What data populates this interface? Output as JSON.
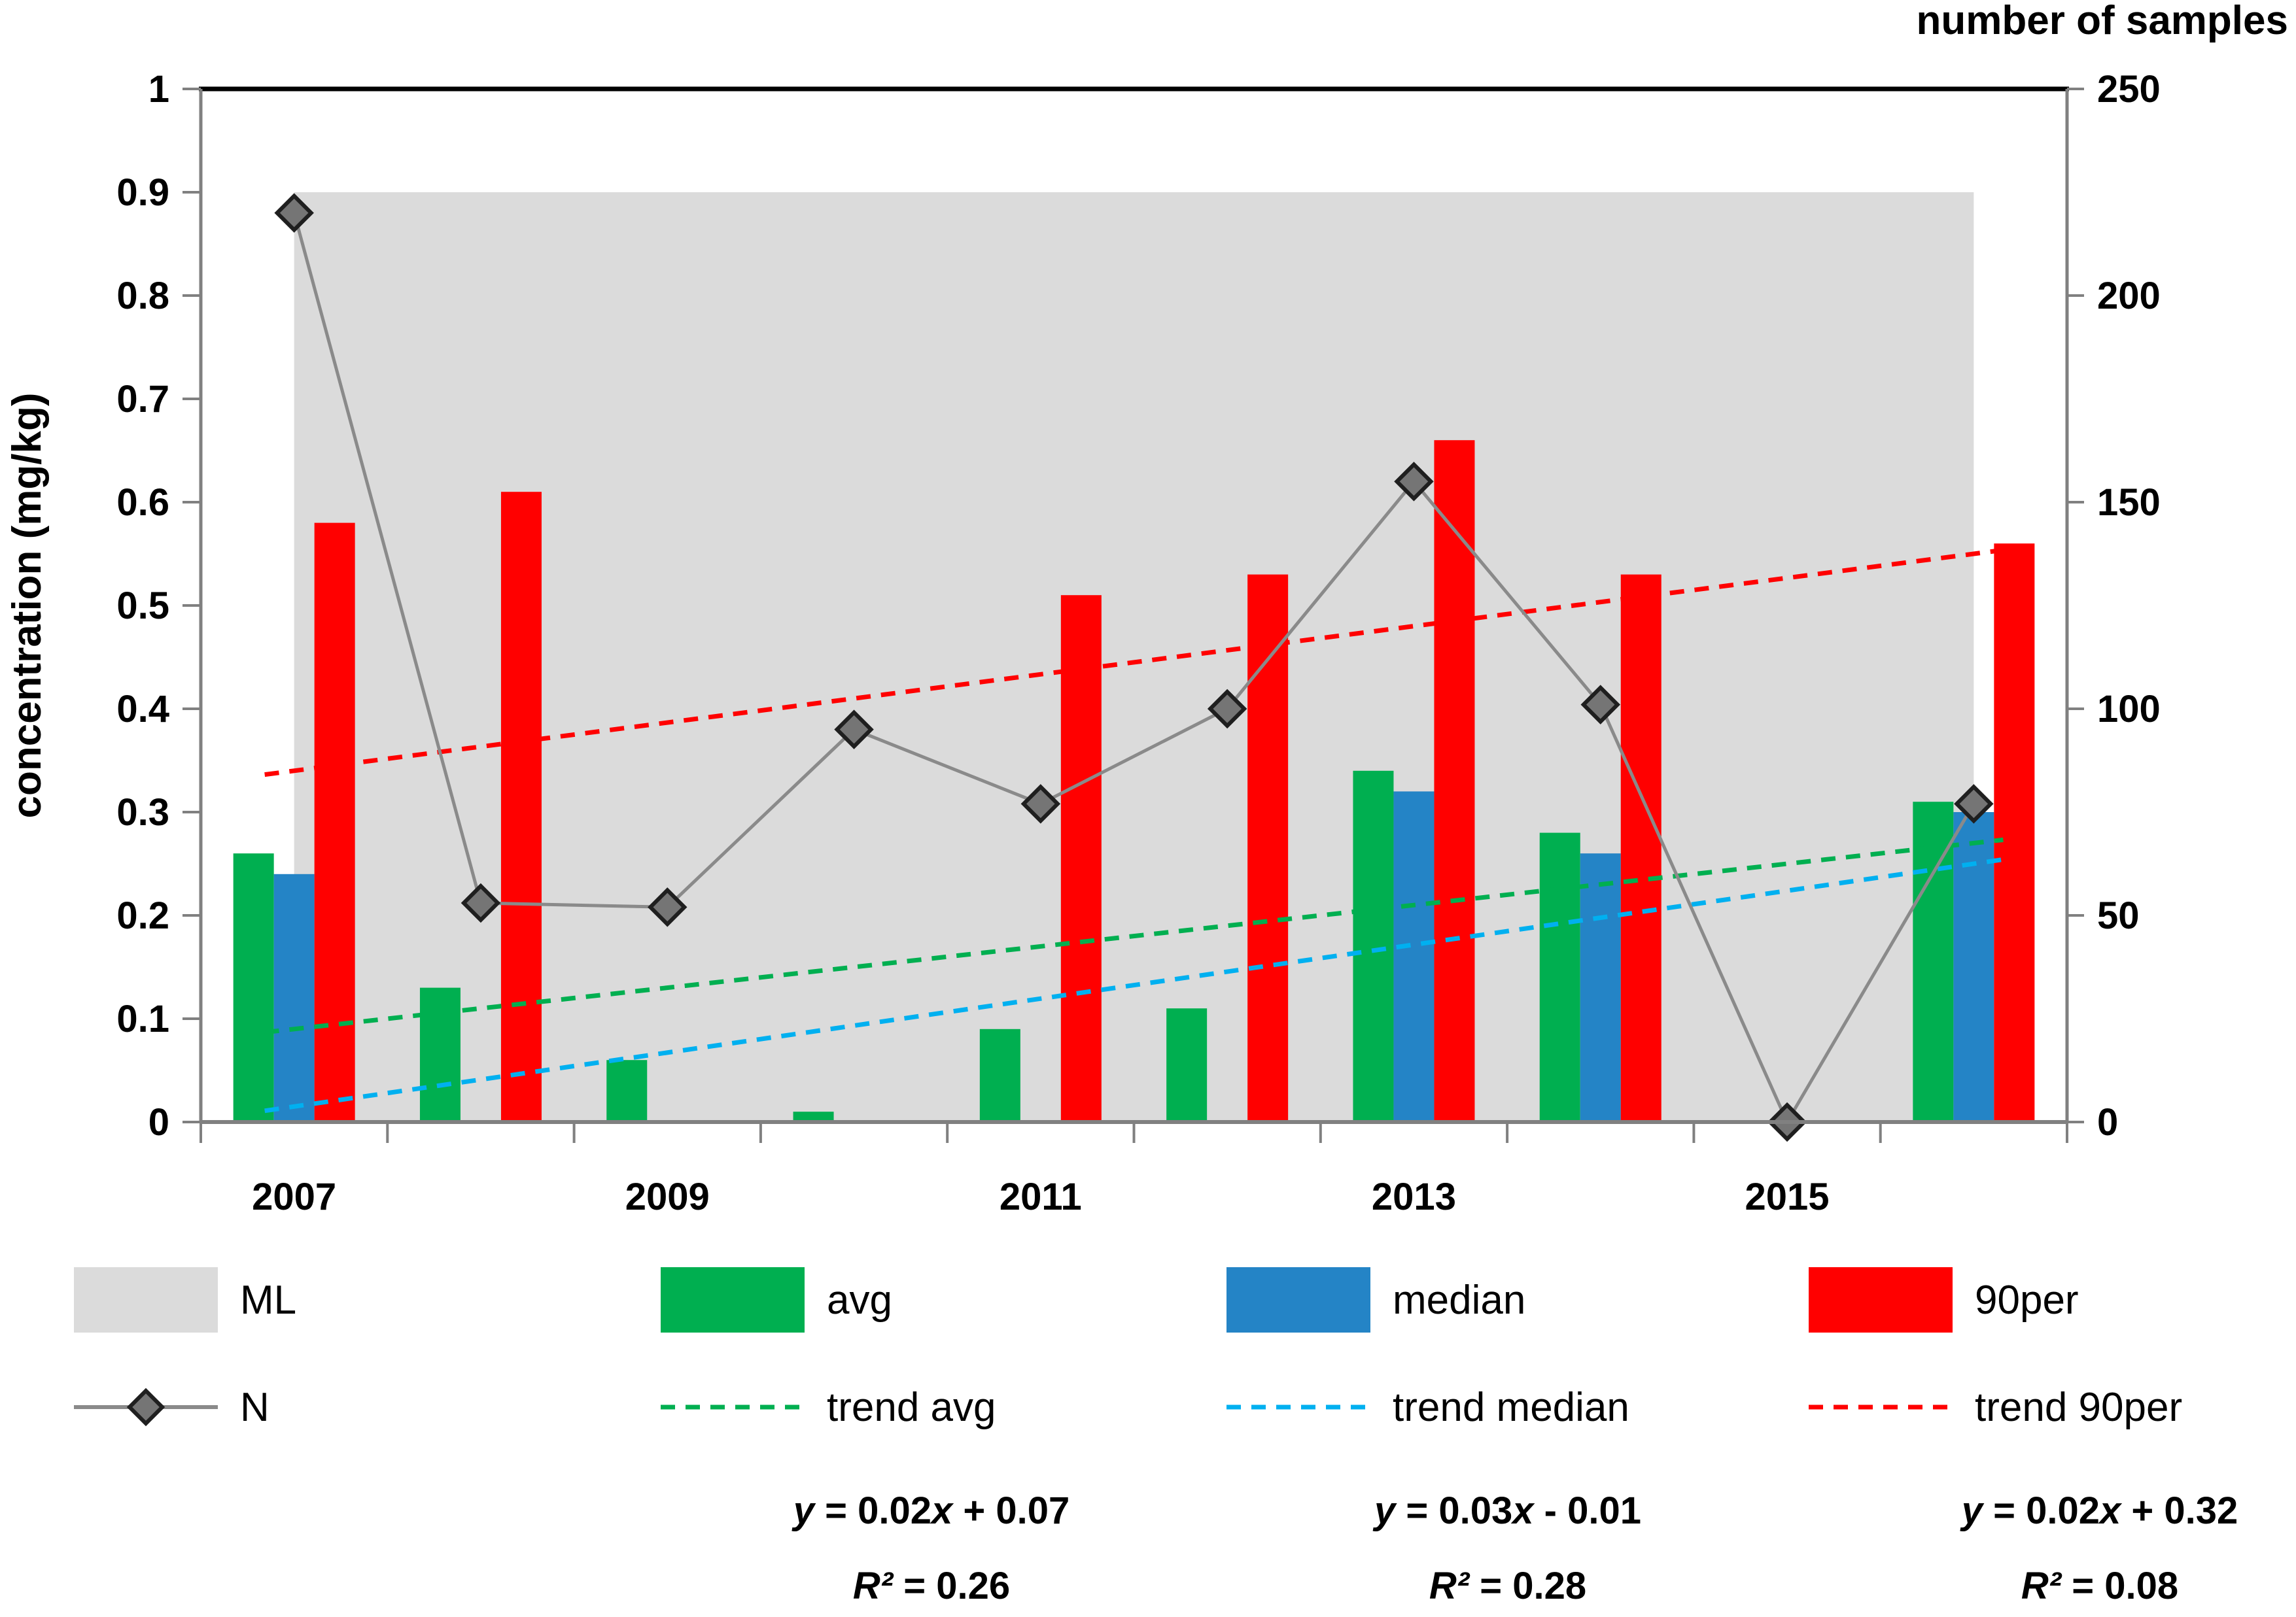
{
  "chart_data": {
    "type": "bar",
    "title": "",
    "categories": [
      2007,
      2008,
      2009,
      2010,
      2011,
      2012,
      2013,
      2014,
      2015,
      2016
    ],
    "x_tick_labels": [
      "2007",
      "2009",
      "2011",
      "2013",
      "2015"
    ],
    "left_axis": {
      "label": "concentration (mg/kg)",
      "min": 0,
      "max": 1,
      "ticks": [
        "1",
        "0.9",
        "0.8",
        "0.7",
        "0.6",
        "0.5",
        "0.4",
        "0.3",
        "0.2",
        "0.1",
        "0"
      ]
    },
    "right_axis": {
      "label": "number of samples",
      "min": 0,
      "max": 250,
      "ticks": [
        "250",
        "200",
        "150",
        "100",
        "50",
        "0"
      ]
    },
    "grid": false,
    "series": [
      {
        "name": "ML",
        "type": "area",
        "axis": "left",
        "color": "#DBDBDB",
        "value": 0.9
      },
      {
        "name": "avg",
        "type": "bar",
        "axis": "left",
        "color": "#00AF50",
        "values": [
          0.26,
          0.13,
          0.06,
          0.01,
          0.09,
          0.11,
          0.34,
          0.28,
          null,
          0.31
        ]
      },
      {
        "name": "median",
        "type": "bar",
        "axis": "left",
        "color": "#2484C6",
        "values": [
          0.24,
          null,
          null,
          null,
          null,
          null,
          0.32,
          0.26,
          null,
          0.3
        ]
      },
      {
        "name": "90per",
        "type": "bar",
        "axis": "left",
        "color": "#FF0000",
        "values": [
          0.58,
          0.61,
          null,
          null,
          0.51,
          0.53,
          0.66,
          0.53,
          null,
          0.56
        ]
      },
      {
        "name": "N",
        "type": "line",
        "axis": "right",
        "color": "#8A8A8A",
        "marker": "diamond",
        "marker_color": "#757575",
        "values": [
          220,
          53,
          52,
          95,
          77,
          100,
          155,
          101,
          0,
          77
        ]
      }
    ],
    "trendlines": [
      {
        "name": "trend avg",
        "color": "#00AF50",
        "equation": "y = 0.02x + 0.07",
        "r2": "R² = 0.26",
        "start": 0.09,
        "end": 0.27
      },
      {
        "name": "trend median",
        "color": "#00B0F0",
        "equation": "y = 0.03x - 0.01",
        "r2": "R² = 0.28",
        "start": 0.015,
        "end": 0.25
      },
      {
        "name": "trend 90per",
        "color": "#FF0000",
        "equation": "y = 0.02x + 0.32",
        "r2": "R² = 0.08",
        "start": 0.34,
        "end": 0.55
      }
    ],
    "legend": {
      "row1": [
        {
          "label": "ML",
          "swatch": "area",
          "color": "#DBDBDB"
        },
        {
          "label": "avg",
          "swatch": "bar",
          "color": "#00AF50"
        },
        {
          "label": "median",
          "swatch": "bar",
          "color": "#2484C6"
        },
        {
          "label": "90per",
          "swatch": "bar",
          "color": "#FF0000"
        }
      ],
      "row2": [
        {
          "label": "N",
          "swatch": "line-diamond",
          "color": "#8A8A8A"
        },
        {
          "label": "trend avg",
          "swatch": "dash",
          "color": "#00AF50"
        },
        {
          "label": "trend median",
          "swatch": "dash",
          "color": "#00B0F0"
        },
        {
          "label": "trend 90per",
          "swatch": "dash",
          "color": "#FF0000"
        }
      ]
    },
    "equations": [
      {
        "line1": "y = 0.02x + 0.07",
        "line2": "R² = 0.26"
      },
      {
        "line1": "y = 0.03x - 0.01",
        "line2": "R² = 0.28"
      },
      {
        "line1": "y = 0.02x + 0.32",
        "line2": "R² = 0.08"
      }
    ]
  }
}
